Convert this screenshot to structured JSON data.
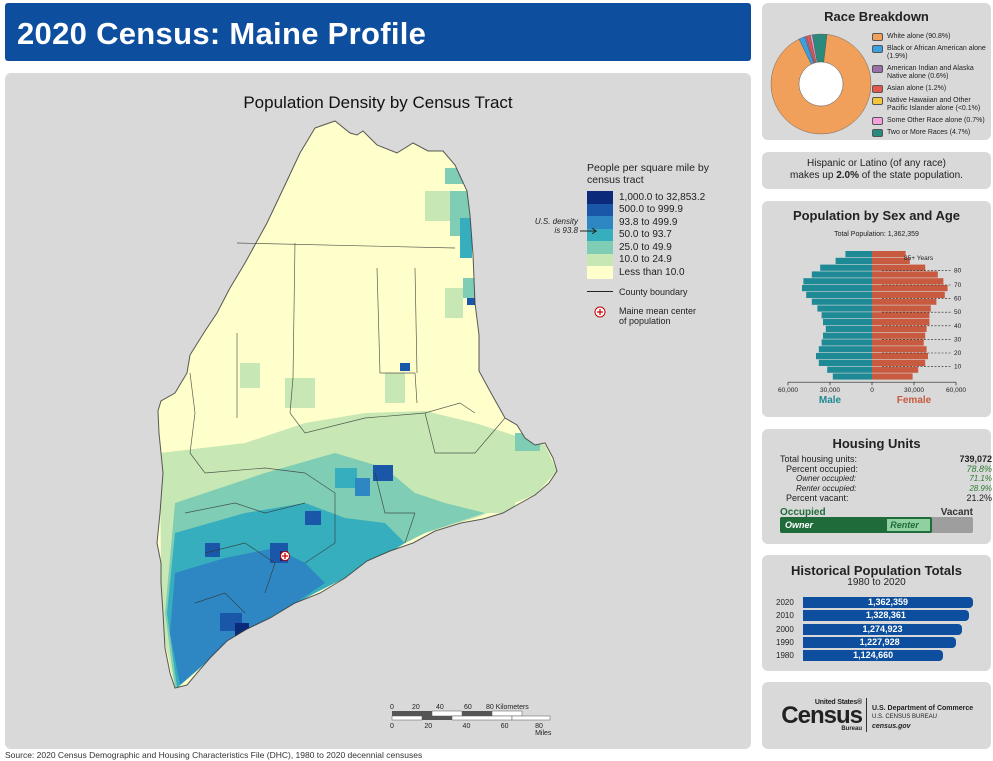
{
  "header": {
    "title": "2020 Census: Maine Profile"
  },
  "map": {
    "title": "Population Density by Census Tract",
    "legend_title": "People per square mile by census tract",
    "classes": [
      {
        "label": "1,000.0 to 32,853.2",
        "color": "#0b2a7a"
      },
      {
        "label": "500.0 to 999.9",
        "color": "#1a57a8"
      },
      {
        "label": "93.8 to 499.9",
        "color": "#2e86c3"
      },
      {
        "label": "50.0 to 93.7",
        "color": "#36aebd"
      },
      {
        "label": "25.0 to 49.9",
        "color": "#7fcdb5"
      },
      {
        "label": "10.0 to 24.9",
        "color": "#c7e8b4"
      },
      {
        "label": "Less than 10.0",
        "color": "#ffffcc"
      }
    ],
    "county_boundary_label": "County boundary",
    "mean_center_label": "Maine mean center of population",
    "us_density_note": "U.S. density is 93.8",
    "scale_km_label": "80 Kilometers",
    "scale_km_ticks": [
      "0",
      "20",
      "40",
      "60"
    ],
    "scale_mi_label": "80 Miles",
    "scale_mi_ticks": [
      "0",
      "20",
      "40",
      "60"
    ]
  },
  "race": {
    "title": "Race Breakdown",
    "items": [
      {
        "label": "White alone (90.8%)",
        "value": 90.8,
        "color": "#f0a05a"
      },
      {
        "label": "Black or African American alone (1.9%)",
        "value": 1.9,
        "color": "#3aa0e0"
      },
      {
        "label": "American Indian and Alaska Native alone (0.6%)",
        "value": 0.6,
        "color": "#9b6fa8"
      },
      {
        "label": "Asian alone (1.2%)",
        "value": 1.2,
        "color": "#e2584f"
      },
      {
        "label": "Native Hawaiian and Other Pacific Islander alone (<0.1%)",
        "value": 0.05,
        "color": "#f3c53a"
      },
      {
        "label": "Some Other Race alone (0.7%)",
        "value": 0.7,
        "color": "#f7a0e0"
      },
      {
        "label": "Two or More Races (4.7%)",
        "value": 4.7,
        "color": "#2a8a7e"
      }
    ]
  },
  "hispanic": {
    "line1": "Hispanic or Latino (of any race)",
    "pre": "makes up",
    "value": "2.0%",
    "post": "of the state population."
  },
  "pyramid": {
    "title": "Population by Sex and Age",
    "total": "Total Population: 1,362,359",
    "male_label": "Male",
    "female_label": "Female",
    "axis_ticks": [
      "60,000",
      "30,000",
      "0",
      "30,000",
      "60,000"
    ],
    "age_labels": [
      "85+ Years",
      "80",
      "70",
      "60",
      "50",
      "40",
      "30",
      "20",
      "10"
    ],
    "male": [
      28000,
      32000,
      38000,
      40000,
      38000,
      36000,
      35000,
      33000,
      35000,
      36000,
      39000,
      43000,
      47000,
      50000,
      49000,
      43000,
      37000,
      26000,
      19000
    ],
    "female": [
      29000,
      33000,
      38000,
      40000,
      39000,
      37000,
      38000,
      39000,
      41000,
      41000,
      42000,
      46000,
      52000,
      54000,
      51000,
      47000,
      38000,
      27000,
      24000
    ],
    "colors": {
      "male": "#1e8a96",
      "female": "#c85a3f"
    }
  },
  "housing": {
    "title": "Housing Units",
    "rows": [
      {
        "label": "Total housing units:",
        "value": "739,072"
      },
      {
        "label": "Percent occupied:",
        "value": "78.8%"
      },
      {
        "label": "Owner occupied:",
        "value": "71.1%"
      },
      {
        "label": "Renter occupied:",
        "value": "28.9%"
      },
      {
        "label": "Percent vacant:",
        "value": "21.2%"
      }
    ],
    "occupied_label": "Occupied",
    "vacant_label": "Vacant",
    "owner_label": "Owner",
    "renter_label": "Renter",
    "occupied_pct": 78.8,
    "owner_pct_of_occupied": 71.1
  },
  "history": {
    "title": "Historical Population Totals",
    "subtitle": "1980 to 2020",
    "rows": [
      {
        "year": "2020",
        "value": 1362359,
        "label": "1,362,359"
      },
      {
        "year": "2010",
        "value": 1328361,
        "label": "1,328,361"
      },
      {
        "year": "2000",
        "value": 1274923,
        "label": "1,274,923"
      },
      {
        "year": "1990",
        "value": 1227928,
        "label": "1,227,928"
      },
      {
        "year": "1980",
        "value": 1124660,
        "label": "1,124,660"
      }
    ]
  },
  "footer": {
    "source": "Source: 2020 Census Demographic and Housing Characteristics File (DHC), 1980 to 2020 decennial censuses",
    "logo_us": "United States®",
    "logo_census": "Census",
    "logo_bureau": "Bureau",
    "dept": "U.S. Department of Commerce",
    "bureau": "U.S. CENSUS BUREAU",
    "site": "census.gov"
  }
}
